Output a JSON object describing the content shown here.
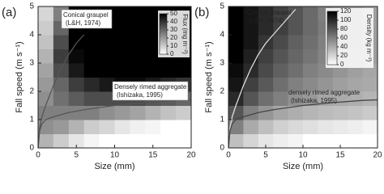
{
  "chart_data": [
    {
      "type": "contour",
      "panel": "(a)",
      "xlabel": "Size (mm)",
      "ylabel": "Fall speed (m s⁻¹)",
      "xlim": [
        0,
        20
      ],
      "ylim": [
        0,
        5
      ],
      "xticks": [
        0,
        5,
        10,
        15,
        20
      ],
      "yticks": [
        0,
        1,
        2,
        3,
        4,
        5
      ],
      "x": [
        1,
        3,
        5,
        7,
        9,
        11,
        13,
        15,
        17,
        19
      ],
      "y": [
        0.25,
        0.75,
        1.25,
        1.75,
        2.25,
        2.75,
        3.25,
        3.75,
        4.25,
        4.75
      ],
      "z": [
        [
          15,
          10,
          5,
          2,
          0,
          0,
          0,
          0,
          0,
          0
        ],
        [
          22,
          20,
          15,
          10,
          8,
          5,
          3,
          2,
          0,
          0
        ],
        [
          25,
          25,
          25,
          25,
          22,
          20,
          18,
          15,
          12,
          10
        ],
        [
          22,
          28,
          32,
          35,
          35,
          35,
          35,
          33,
          32,
          30
        ],
        [
          20,
          30,
          38,
          42,
          45,
          48,
          48,
          45,
          42,
          40
        ],
        [
          18,
          35,
          45,
          50,
          50,
          50,
          50,
          50,
          50,
          50
        ],
        [
          15,
          38,
          48,
          50,
          50,
          50,
          50,
          50,
          50,
          50
        ],
        [
          12,
          35,
          50,
          50,
          50,
          50,
          50,
          50,
          50,
          50
        ],
        [
          10,
          30,
          50,
          50,
          50,
          50,
          50,
          50,
          50,
          50
        ],
        [
          8,
          25,
          50,
          50,
          50,
          50,
          50,
          50,
          50,
          50
        ]
      ],
      "colorbar": {
        "label": "Flux (mg m⁻²)",
        "clim": [
          0,
          50
        ],
        "ticks": [
          0,
          10,
          20,
          30,
          40,
          50
        ]
      },
      "series": [
        {
          "name": "Conical graupel",
          "source": "(L&H, 1974)",
          "color": "#555555",
          "x": [
            0,
            0.2,
            0.5,
            1,
            2,
            3,
            4,
            5,
            6
          ],
          "values": [
            0,
            0.7,
            1.1,
            1.5,
            2.2,
            2.8,
            3.3,
            3.7,
            4.0
          ]
        },
        {
          "name": "Densely rimed aggregate",
          "source": "(Ishizaka, 1995)",
          "color": "#555555",
          "x": [
            0,
            0.2,
            0.5,
            1,
            2,
            4,
            6,
            10,
            14,
            18,
            20
          ],
          "values": [
            0,
            0.6,
            0.85,
            1.0,
            1.1,
            1.25,
            1.35,
            1.5,
            1.6,
            1.68,
            1.7
          ]
        }
      ]
    },
    {
      "type": "contour",
      "panel": "(b)",
      "xlabel": "Size (mm)",
      "ylabel": "Fall speed (m s⁻¹)",
      "xlim": [
        0,
        20
      ],
      "ylim": [
        0,
        5
      ],
      "xticks": [
        0,
        5,
        10,
        15,
        20
      ],
      "yticks": [
        0,
        1,
        2,
        3,
        4,
        5
      ],
      "x": [
        1,
        3,
        5,
        7,
        9,
        11,
        13,
        15,
        17,
        19
      ],
      "y": [
        0.25,
        0.75,
        1.25,
        1.75,
        2.25,
        2.75,
        3.25,
        3.75,
        4.25,
        4.75
      ],
      "z": [
        [
          30,
          20,
          12,
          8,
          5,
          0,
          0,
          0,
          0,
          0
        ],
        [
          60,
          40,
          30,
          22,
          18,
          15,
          12,
          10,
          8,
          5
        ],
        [
          80,
          60,
          50,
          42,
          38,
          35,
          32,
          30,
          28,
          25
        ],
        [
          100,
          80,
          68,
          60,
          52,
          48,
          42,
          40,
          38,
          35
        ],
        [
          110,
          90,
          78,
          68,
          60,
          55,
          50,
          45,
          42,
          40
        ],
        [
          115,
          100,
          85,
          75,
          68,
          60,
          55,
          50,
          45,
          42
        ],
        [
          120,
          105,
          90,
          80,
          72,
          65,
          58,
          52,
          48,
          45
        ],
        [
          120,
          110,
          95,
          85,
          75,
          68,
          60,
          55,
          50,
          45
        ],
        [
          120,
          110,
          100,
          90,
          80,
          70,
          62,
          55,
          50,
          45
        ],
        [
          120,
          110,
          100,
          90,
          80,
          70,
          60,
          55,
          50,
          45
        ]
      ],
      "colorbar": {
        "label": "Density (kg m⁻³)",
        "clim": [
          0,
          120
        ],
        "ticks": [
          0,
          20,
          40,
          60,
          80,
          100,
          120
        ]
      },
      "series": [
        {
          "name": "Conical graupel",
          "source": "(L&H, 1974)",
          "color": "#dddddd",
          "x": [
            0,
            0.2,
            0.5,
            1,
            2,
            3,
            4,
            5,
            6,
            7,
            8,
            9
          ],
          "values": [
            0,
            0.7,
            1.1,
            1.5,
            2.2,
            2.8,
            3.3,
            3.7,
            4.0,
            4.3,
            4.6,
            4.9
          ]
        },
        {
          "name": "densely rimed aggregate",
          "source": "(Ishizaka, 1995)",
          "color": "#444444",
          "x": [
            0,
            0.2,
            0.5,
            1,
            2,
            4,
            6,
            10,
            14,
            18,
            20
          ],
          "values": [
            0,
            0.6,
            0.85,
            1.0,
            1.1,
            1.25,
            1.35,
            1.5,
            1.6,
            1.68,
            1.7
          ]
        }
      ]
    }
  ]
}
